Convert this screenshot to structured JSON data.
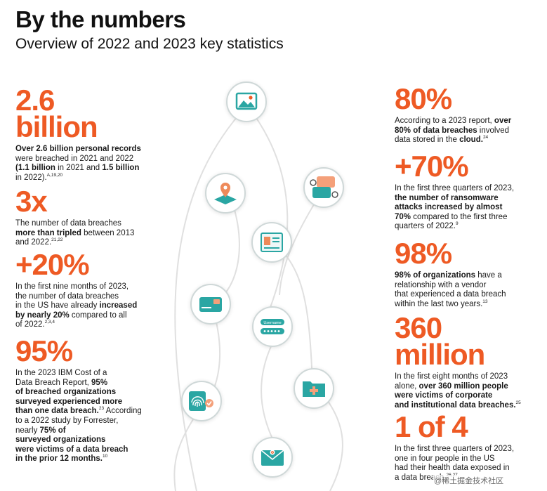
{
  "header": {
    "title": "By the numbers",
    "subtitle": "Overview of 2022 and 2023 key statistics"
  },
  "stats_left": [
    {
      "big_line1": "2.6",
      "big_line2": "billion",
      "d1": "Over 2.6 billion personal records",
      "d2": "were breached in 2021 and 2022",
      "d3a": "(",
      "d3b": "1.1 billion",
      "d3c": " in 2021 and ",
      "d3d": "1.5 billion",
      "d4": "in 2022).",
      "d4sup": "A,19,20"
    },
    {
      "big": "3x",
      "d1": "The number of data breaches",
      "d2a": "more than tripled",
      "d2b": " between 2013",
      "d3": "and 2022.",
      "d3sup": "21,22"
    },
    {
      "big": "+20%",
      "d1": "In the first nine months of 2023,",
      "d2": "the number of data breaches",
      "d3a": "in the US have already ",
      "d3b": "increased",
      "d4a": "by nearly 20%",
      "d4b": " compared to all",
      "d5": "of 2022.",
      "d5sup": "2,3,4"
    },
    {
      "big": "95%",
      "d1": "In the 2023 IBM Cost of a",
      "d2a": "Data Breach Report, ",
      "d2b": "95%",
      "d3": "of breached organizations",
      "d4": "surveyed experienced more",
      "d5a": "than one data breach.",
      "d5sup": "23",
      "d5b": " According",
      "d6": "to a 2022 study by Forrester,",
      "d7a": "nearly ",
      "d7b": "75% of",
      "d8": "surveyed organizations",
      "d9": "were victims of a data breach",
      "d10": "in the prior 12 months.",
      "d10sup": "10"
    }
  ],
  "stats_right": [
    {
      "big": "80%",
      "d1": "According to a 2023 report, ",
      "d1b": "over",
      "d2a": "80% of data breaches",
      "d2b": " involved",
      "d3a": "data stored in the ",
      "d3b": "cloud.",
      "d3sup": "24"
    },
    {
      "big": "+70%",
      "d1": "In the first three quarters of 2023,",
      "d2": "the number of ransomware",
      "d3": "attacks increased by almost",
      "d4a": "70%",
      "d4b": " compared to the first three",
      "d5": "quarters of 2022.",
      "d5sup": "9"
    },
    {
      "big": "98%",
      "d1a": "98% of organizations",
      "d1b": " have a",
      "d2": "relationship with a vendor",
      "d3": "that experienced a data breach",
      "d4": "within the last two years.",
      "d4sup": "13"
    },
    {
      "big_line1": "360",
      "big_line2": "million",
      "d1": "In the first eight months of 2023",
      "d2a": "alone, ",
      "d2b": "over 360 million people",
      "d3": "were victims of corporate",
      "d4": "and institutional data breaches.",
      "d4sup": "25"
    },
    {
      "big": "1 of 4",
      "d1": "In the first three quarters of 2023,",
      "d2": "one in four people in the US",
      "d3": "had their health data exposed in",
      "d4": "a data breach.",
      "d4sup": "26,27"
    }
  ],
  "icons": {
    "image": "image-icon",
    "map_pin": "map-pin-icon",
    "chat": "chat-bubbles-icon",
    "id_card": "id-card-icon",
    "credit_card": "credit-card-icon",
    "login": "login-form-icon",
    "fingerprint": "fingerprint-icon",
    "medical_folder": "medical-folder-icon",
    "email": "email-icon",
    "login_field_label": "Username"
  },
  "watermark": "@稀土掘金技术社区",
  "colors": {
    "accent": "#ee5a24",
    "teal": "#2aa6a3",
    "text": "#111111"
  }
}
